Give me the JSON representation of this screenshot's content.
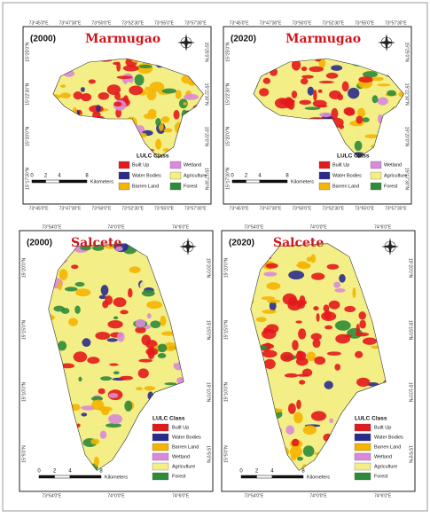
{
  "figure": {
    "panels": [
      {
        "year": "(2000)",
        "region": "Marmugao",
        "top_ticks": [
          "73°45'0\"E",
          "73°47'30\"E",
          "73°50'0\"E",
          "73°52'30\"E",
          "73°55'0\"E",
          "73°57'30\"E"
        ],
        "bottom_ticks": [
          "73°45'0\"E",
          "73°47'30\"E",
          "73°50'0\"E",
          "73°52'30\"E",
          "73°55'0\"E",
          "73°57'30\"E"
        ],
        "left_ticks": [
          "15°25'0\"N",
          "15°22'30\"N",
          "15°20'0\"N",
          "15°17'30\"N"
        ],
        "right_ticks": [
          "15°25'0\"N",
          "15°22'30\"N",
          "15°20'0\"N",
          "15°17'30\"N"
        ],
        "legend": {
          "title": "LULC Class",
          "items": [
            {
              "label": "Built Up",
              "color": "#e31a1c"
            },
            {
              "label": "Wetland",
              "color": "#d98ad9"
            },
            {
              "label": "Water Bodies",
              "color": "#2b2b8c"
            },
            {
              "label": "Agriculture",
              "color": "#f3ef86"
            },
            {
              "label": "Barren Land",
              "color": "#f5b400"
            },
            {
              "label": "Forest",
              "color": "#2e8b3a"
            }
          ]
        },
        "scale": {
          "labels": [
            "0",
            "2",
            "4",
            "8"
          ],
          "unit": "Kilometers"
        }
      },
      {
        "year": "(2020)",
        "region": "Marmugao",
        "top_ticks": [
          "73°45'0\"E",
          "73°47'30\"E",
          "73°50'0\"E",
          "73°52'30\"E",
          "73°55'0\"E",
          "73°57'30\"E"
        ],
        "bottom_ticks": [
          "73°45'0\"E",
          "73°47'30\"E",
          "73°50'0\"E",
          "73°52'30\"E",
          "73°55'0\"E",
          "73°57'30\"E"
        ],
        "left_ticks": [
          "15°25'0\"N",
          "15°22'30\"N",
          "15°20'0\"N",
          "15°17'30\"N"
        ],
        "right_ticks": [
          "15°25'0\"N",
          "15°22'30\"N",
          "15°20'0\"N",
          "15°17'30\"N"
        ],
        "legend": {
          "title": "LULC Class",
          "items": [
            {
              "label": "Built Up",
              "color": "#e31a1c"
            },
            {
              "label": "Wetland",
              "color": "#d98ad9"
            },
            {
              "label": "Water Bodies",
              "color": "#2b2b8c"
            },
            {
              "label": "Agriculture",
              "color": "#f3ef86"
            },
            {
              "label": "Barren Land",
              "color": "#f5b400"
            },
            {
              "label": "Forest",
              "color": "#2e8b3a"
            }
          ]
        },
        "scale": {
          "labels": [
            "0",
            "2",
            "4",
            "8"
          ],
          "unit": "Kilometers"
        }
      },
      {
        "year": "(2000)",
        "region": "Salcete",
        "top_ticks": [
          "73°54'0\"E",
          "74°0'0\"E",
          "74°6'0\"E"
        ],
        "bottom_ticks": [
          "73°54'0\"E",
          "74°0'0\"E",
          "74°6'0\"E"
        ],
        "left_ticks": [
          "15°20'0\"N",
          "15°15'0\"N",
          "15°10'0\"N",
          "15°5'0\"N"
        ],
        "right_ticks": [
          "15°20'0\"N",
          "15°15'0\"N",
          "15°10'0\"N",
          "15°5'0\"N"
        ],
        "legend": {
          "title": "LULC Class",
          "items": [
            {
              "label": "Built Up",
              "color": "#e31a1c"
            },
            {
              "label": "Water Bodies",
              "color": "#2b2b8c"
            },
            {
              "label": "Barren Land",
              "color": "#f5b400"
            },
            {
              "label": "Wetland",
              "color": "#d98ad9"
            },
            {
              "label": "Agriculture",
              "color": "#f3ef86"
            },
            {
              "label": "Forest",
              "color": "#2e8b3a"
            }
          ]
        },
        "scale": {
          "labels": [
            "0",
            "2",
            "4",
            "8"
          ],
          "unit": "Kilometers"
        }
      },
      {
        "year": "(2020)",
        "region": "Salcete",
        "top_ticks": [
          "73°54'0\"E",
          "74°0'0\"E",
          "74°6'0\"E"
        ],
        "bottom_ticks": [
          "73°54'0\"E",
          "74°0'0\"E",
          "74°6'0\"E"
        ],
        "left_ticks": [
          "15°20'0\"N",
          "15°15'0\"N",
          "15°10'0\"N",
          "15°5'0\"N"
        ],
        "right_ticks": [
          "15°20'0\"N",
          "15°15'0\"N",
          "15°10'0\"N",
          "15°5'0\"N"
        ],
        "legend": {
          "title": "LULC Class",
          "items": [
            {
              "label": "Built Up",
              "color": "#e31a1c"
            },
            {
              "label": "Water Bodies",
              "color": "#2b2b8c"
            },
            {
              "label": "Barren Land",
              "color": "#f5b400"
            },
            {
              "label": "Wetland",
              "color": "#d98ad9"
            },
            {
              "label": "Agriculture",
              "color": "#f3ef86"
            },
            {
              "label": "Forest",
              "color": "#2e8b3a"
            }
          ]
        },
        "scale": {
          "labels": [
            "0",
            "2",
            "4",
            "8"
          ],
          "unit": "Kilometers"
        }
      }
    ]
  }
}
